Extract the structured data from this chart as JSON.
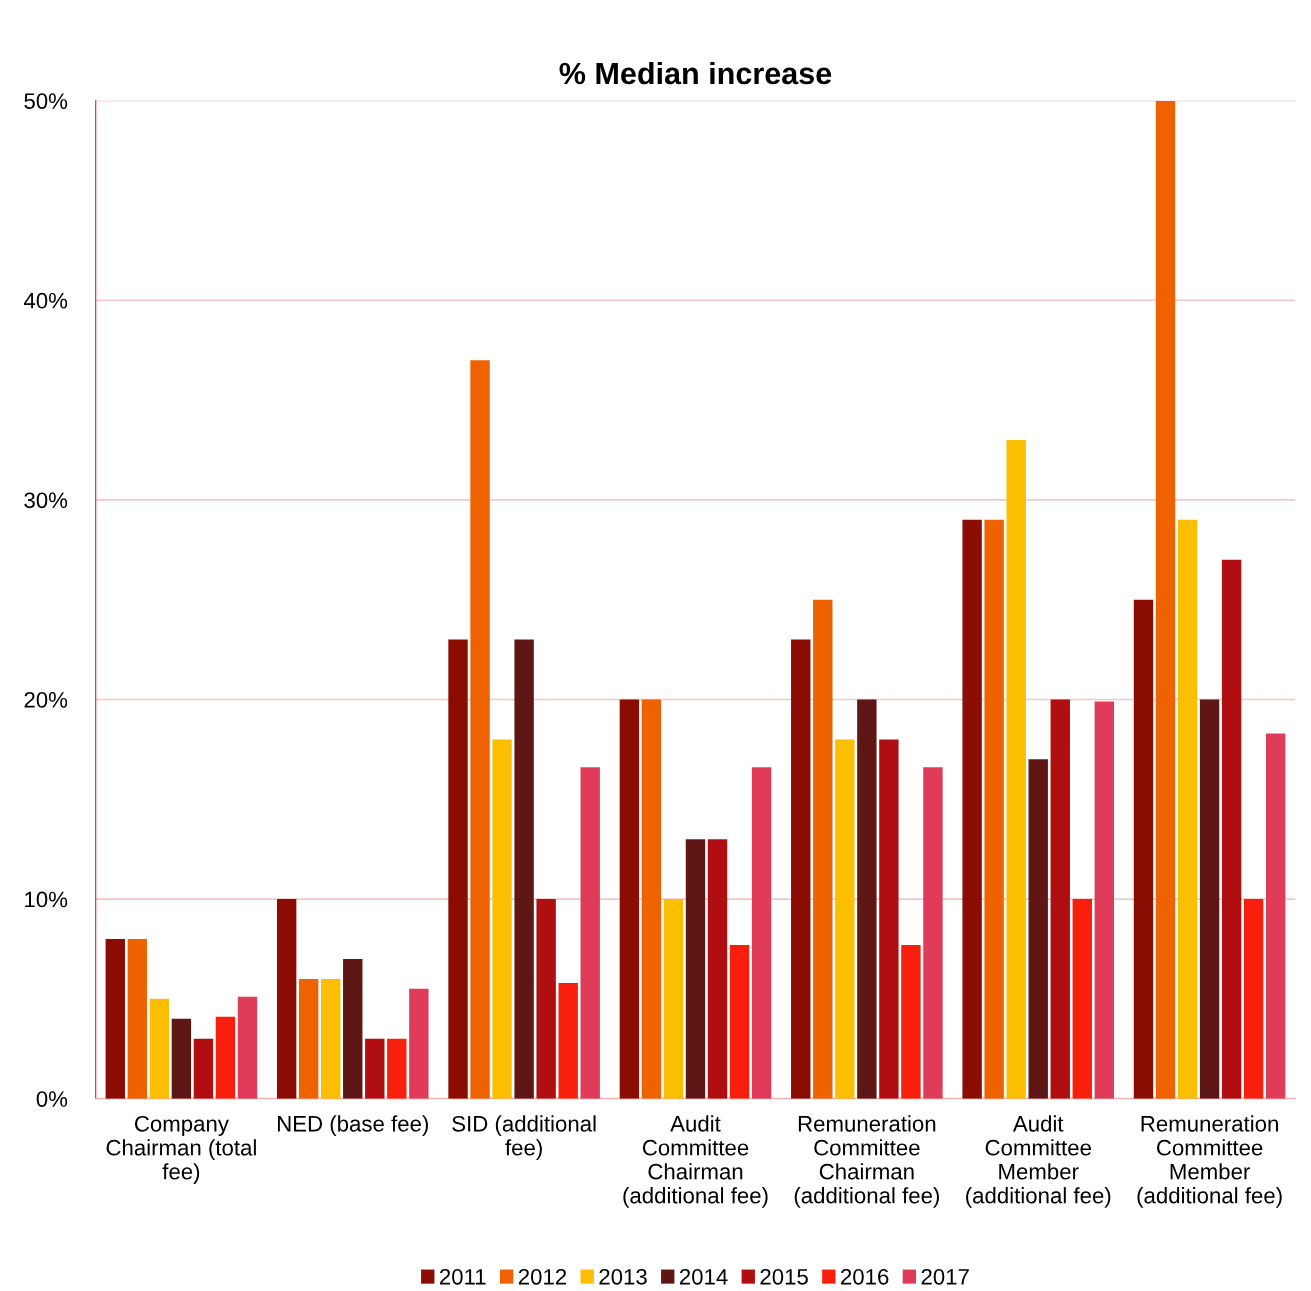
{
  "chart_data": {
    "type": "bar",
    "title": "% Median increase",
    "categories": [
      "Company\nChairman (total\nfee)",
      "NED (base fee)",
      "SID (additional\nfee)",
      "Audit\nCommittee\nChairman\n(additional fee)",
      "Remuneration\nCommittee\nChairman\n(additional fee)",
      "Audit\nCommittee\nMember\n(additional fee)",
      "Remuneration\nCommittee\nMember\n(additional fee)"
    ],
    "series": [
      {
        "name": "2011",
        "color": "#8b0c02",
        "values": [
          8,
          10,
          23,
          20,
          23,
          29,
          25
        ]
      },
      {
        "name": "2012",
        "color": "#ee6200",
        "values": [
          8,
          6,
          37,
          20,
          25,
          29,
          50
        ]
      },
      {
        "name": "2013",
        "color": "#fcbe00",
        "values": [
          5,
          6,
          18,
          10,
          18,
          33,
          29
        ]
      },
      {
        "name": "2014",
        "color": "#5e1714",
        "values": [
          4,
          7,
          23,
          13,
          20,
          17,
          20
        ]
      },
      {
        "name": "2015",
        "color": "#b00e10",
        "values": [
          3,
          3,
          10,
          13,
          18,
          20,
          27
        ]
      },
      {
        "name": "2016",
        "color": "#f8200c",
        "values": [
          4.1,
          3,
          5.8,
          7.7,
          7.7,
          10,
          10
        ]
      },
      {
        "name": "2017",
        "color": "#e03c5a",
        "values": [
          5.1,
          5.5,
          16.6,
          16.6,
          16.6,
          19.9,
          18.3
        ]
      }
    ],
    "ylim": [
      0,
      50
    ],
    "yticks": [
      {
        "value": 0,
        "label": "0%"
      },
      {
        "value": 10,
        "label": "10%"
      },
      {
        "value": 20,
        "label": "20%"
      },
      {
        "value": 30,
        "label": "30%"
      },
      {
        "value": 40,
        "label": "40%"
      },
      {
        "value": 50,
        "label": "50%"
      }
    ],
    "grid": "y",
    "legend": "bottom"
  }
}
